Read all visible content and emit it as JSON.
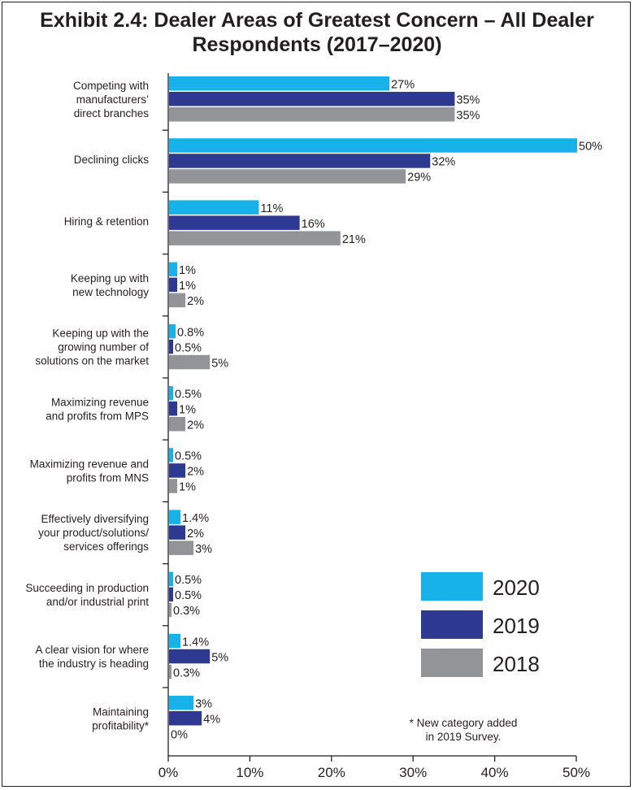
{
  "chart_data": {
    "type": "bar",
    "orientation": "horizontal",
    "title_line1": "Exhibit 2.4: Dealer Areas of Greatest Concern – All Dealer",
    "title_line2": "Respondents (2017–2020)",
    "categories": [
      [
        "Competing with",
        "manufacturers’",
        "direct branches"
      ],
      [
        "Declining clicks"
      ],
      [
        "Hiring & retention"
      ],
      [
        "Keeping up with",
        "new technology"
      ],
      [
        "Keeping up with the",
        "growing number of",
        "solutions on the market"
      ],
      [
        "Maximizing revenue",
        "and profits from MPS"
      ],
      [
        "Maximizing revenue and",
        "profits from MNS"
      ],
      [
        "Effectively diversifying",
        "your product/solutions/",
        "services offerings"
      ],
      [
        "Succeeding in production",
        "and/or industrial print"
      ],
      [
        "A clear vision for where",
        "the industry is heading"
      ],
      [
        "Maintaining",
        "profitability*"
      ]
    ],
    "series": [
      {
        "name": "2020",
        "color": "#18b2ea",
        "values": [
          27,
          50,
          11,
          1,
          0.8,
          0.5,
          0.5,
          1.4,
          0.5,
          1.4,
          3
        ],
        "labels": [
          "27%",
          "50%",
          "11%",
          "1%",
          "0.8%",
          "0.5%",
          "0.5%",
          "1.4%",
          "0.5%",
          "1.4%",
          "3%"
        ]
      },
      {
        "name": "2019",
        "color": "#2e3991",
        "values": [
          35,
          32,
          16,
          1,
          0.5,
          1,
          2,
          2,
          0.5,
          5,
          4
        ],
        "labels": [
          "35%",
          "32%",
          "16%",
          "1%",
          "0.5%",
          "1%",
          "2%",
          "2%",
          "0.5%",
          "5%",
          "4%"
        ]
      },
      {
        "name": "2018",
        "color": "#929497",
        "values": [
          35,
          29,
          21,
          2,
          5,
          2,
          1,
          3,
          0.3,
          0.3,
          0
        ],
        "labels": [
          "35%",
          "29%",
          "21%",
          "2%",
          "5%",
          "2%",
          "1%",
          "3%",
          "0.3%",
          "0.3%",
          "0%"
        ]
      }
    ],
    "xlim": [
      0,
      50
    ],
    "xticks": [
      "0%",
      "10%",
      "20%",
      "30%",
      "40%",
      "50%"
    ],
    "legend_position": "bottom-right",
    "note_line1": "* New category added",
    "note_line2": "in 2019 Survey."
  }
}
